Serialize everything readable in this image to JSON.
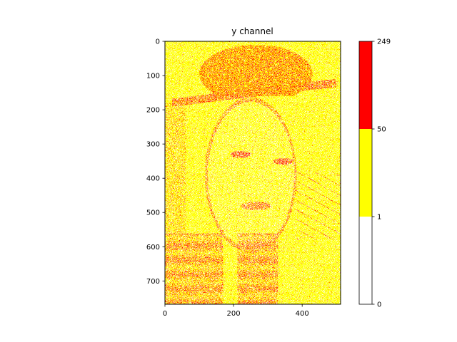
{
  "chart_data": {
    "type": "heatmap",
    "title": "y channel",
    "xlabel": "",
    "ylabel": "",
    "image_size": [
      512,
      768
    ],
    "xlim": [
      0,
      512
    ],
    "ylim": [
      768,
      0
    ],
    "x_ticks": [
      0,
      200,
      400
    ],
    "y_ticks": [
      0,
      100,
      200,
      300,
      400,
      500,
      600,
      700
    ],
    "colormap": {
      "boundaries": [
        0,
        1,
        50,
        249
      ],
      "colors": [
        "#ffffff",
        "#ffff00",
        "#ff0000"
      ]
    },
    "colorbar_ticks": [
      0,
      1,
      50,
      249
    ]
  }
}
